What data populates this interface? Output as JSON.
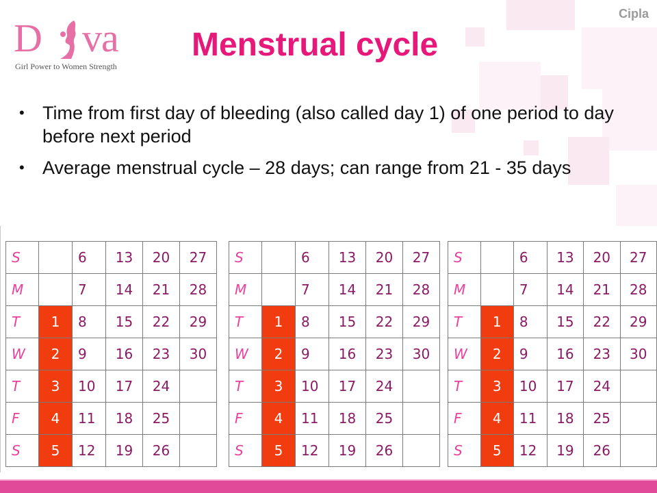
{
  "brand": "Cipla",
  "logo": {
    "text_left": "D",
    "text_right": "va",
    "tagline": "Girl Power to Women Strength"
  },
  "title": "Menstrual cycle",
  "bullets": [
    "Time from first day of bleeding (also called day 1) of one period to day before next period",
    "Average menstrual cycle – 28 days; can range from 21 - 35 days"
  ],
  "calendars": [
    {
      "rows": [
        [
          "S",
          "",
          "6",
          "13",
          "20",
          "27"
        ],
        [
          "M",
          "",
          "7",
          "14",
          "21",
          "28"
        ],
        [
          "T",
          "1",
          "8",
          "15",
          "22",
          "29"
        ],
        [
          "W",
          "2",
          "9",
          "16",
          "23",
          "30"
        ],
        [
          "T",
          "3",
          "10",
          "17",
          "24",
          ""
        ],
        [
          "F",
          "4",
          "11",
          "18",
          "25",
          ""
        ],
        [
          "S",
          "5",
          "12",
          "19",
          "26",
          ""
        ]
      ]
    },
    {
      "rows": [
        [
          "S",
          "",
          "6",
          "13",
          "20",
          "27"
        ],
        [
          "M",
          "",
          "7",
          "14",
          "21",
          "28"
        ],
        [
          "T",
          "1",
          "8",
          "15",
          "22",
          "29"
        ],
        [
          "W",
          "2",
          "9",
          "16",
          "23",
          "30"
        ],
        [
          "T",
          "3",
          "10",
          "17",
          "24",
          ""
        ],
        [
          "F",
          "4",
          "11",
          "18",
          "25",
          ""
        ],
        [
          "S",
          "5",
          "12",
          "19",
          "26",
          ""
        ]
      ]
    },
    {
      "rows": [
        [
          "S",
          "",
          "6",
          "13",
          "20",
          "27"
        ],
        [
          "M",
          "",
          "7",
          "14",
          "21",
          "28"
        ],
        [
          "T",
          "1",
          "8",
          "15",
          "22",
          "29"
        ],
        [
          "W",
          "2",
          "9",
          "16",
          "23",
          "30"
        ],
        [
          "T",
          "3",
          "10",
          "17",
          "24",
          ""
        ],
        [
          "F",
          "4",
          "11",
          "18",
          "25",
          ""
        ],
        [
          "S",
          "5",
          "12",
          "19",
          "26",
          ""
        ]
      ]
    }
  ],
  "highlighted_days": [
    "1",
    "2",
    "3",
    "4",
    "5"
  ],
  "colors": {
    "title": "#e6197a",
    "highlight": "#f03c0f",
    "weekday": "#ea3f9c",
    "date": "#8a1a63",
    "bar": "#e04a98"
  }
}
